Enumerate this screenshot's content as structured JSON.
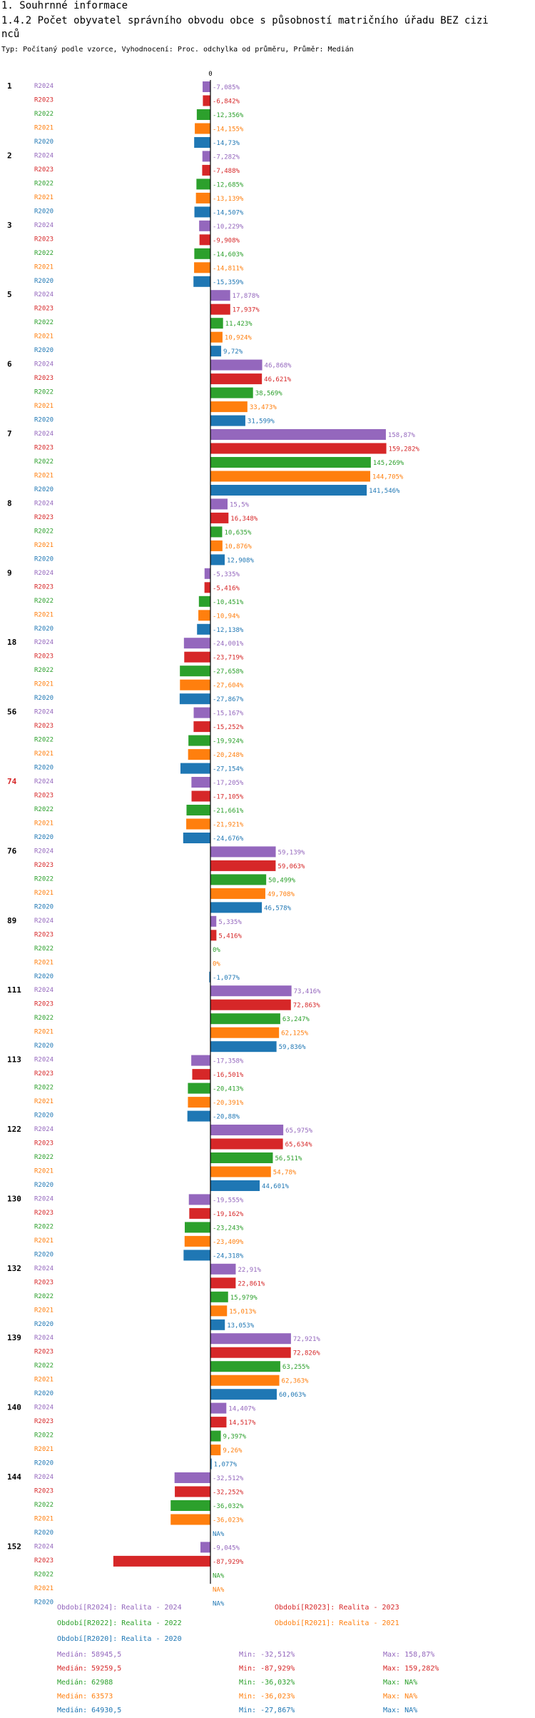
{
  "header": {
    "section": "1. Souhrnné informace",
    "title_line1": "1.4.2 Počet obyvatel správního obvodu obce s působností matričního úřadu BEZ cizi",
    "title_line2": "nců",
    "subtitle": "Typ: Počítaný podle vzorce, Vyhodnocení: Proc. odchylka od průměru, Průměr: Medián"
  },
  "colors": {
    "R2024": "#9467bd",
    "R2023": "#d62728",
    "R2022": "#2ca02c",
    "R2021": "#ff7f0e",
    "R2020": "#1f77b4",
    "highlight_label": "#d62728"
  },
  "chart_data": {
    "type": "bar",
    "orientation": "horizontal",
    "zero_label": "0",
    "series_labels": [
      "R2024",
      "R2023",
      "R2022",
      "R2021",
      "R2020"
    ],
    "highlight_group": "74",
    "groups": [
      {
        "id": "1",
        "values": [
          -7.085,
          -6.842,
          -12.356,
          -14.155,
          -14.73
        ],
        "labels": [
          "-7,085%",
          "-6,842%",
          "-12,356%",
          "-14,155%",
          "-14,73%"
        ]
      },
      {
        "id": "2",
        "values": [
          -7.282,
          -7.488,
          -12.685,
          -13.139,
          -14.507
        ],
        "labels": [
          "-7,282%",
          "-7,488%",
          "-12,685%",
          "-13,139%",
          "-14,507%"
        ]
      },
      {
        "id": "3",
        "values": [
          -10.229,
          -9.908,
          -14.603,
          -14.811,
          -15.359
        ],
        "labels": [
          "-10,229%",
          "-9,908%",
          "-14,603%",
          "-14,811%",
          "-15,359%"
        ]
      },
      {
        "id": "5",
        "values": [
          17.878,
          17.937,
          11.423,
          10.924,
          9.72
        ],
        "labels": [
          "17,878%",
          "17,937%",
          "11,423%",
          "10,924%",
          "9,72%"
        ]
      },
      {
        "id": "6",
        "values": [
          46.868,
          46.621,
          38.569,
          33.473,
          31.599
        ],
        "labels": [
          "46,868%",
          "46,621%",
          "38,569%",
          "33,473%",
          "31,599%"
        ]
      },
      {
        "id": "7",
        "values": [
          158.87,
          159.282,
          145.269,
          144.705,
          141.546
        ],
        "labels": [
          "158,87%",
          "159,282%",
          "145,269%",
          "144,705%",
          "141,546%"
        ]
      },
      {
        "id": "8",
        "values": [
          15.5,
          16.348,
          10.635,
          10.876,
          12.908
        ],
        "labels": [
          "15,5%",
          "16,348%",
          "10,635%",
          "10,876%",
          "12,908%"
        ]
      },
      {
        "id": "9",
        "values": [
          -5.335,
          -5.416,
          -10.451,
          -10.94,
          -12.138
        ],
        "labels": [
          "-5,335%",
          "-5,416%",
          "-10,451%",
          "-10,94%",
          "-12,138%"
        ]
      },
      {
        "id": "18",
        "values": [
          -24.001,
          -23.719,
          -27.658,
          -27.604,
          -27.867
        ],
        "labels": [
          "-24,001%",
          "-23,719%",
          "-27,658%",
          "-27,604%",
          "-27,867%"
        ]
      },
      {
        "id": "56",
        "values": [
          -15.167,
          -15.252,
          -19.924,
          -20.248,
          -27.154
        ],
        "labels": [
          "-15,167%",
          "-15,252%",
          "-19,924%",
          "-20,248%",
          "-27,154%"
        ]
      },
      {
        "id": "74",
        "values": [
          -17.205,
          -17.105,
          -21.661,
          -21.921,
          -24.676
        ],
        "labels": [
          "-17,205%",
          "-17,105%",
          "-21,661%",
          "-21,921%",
          "-24,676%"
        ]
      },
      {
        "id": "76",
        "values": [
          59.139,
          59.063,
          50.499,
          49.708,
          46.578
        ],
        "labels": [
          "59,139%",
          "59,063%",
          "50,499%",
          "49,708%",
          "46,578%"
        ]
      },
      {
        "id": "89",
        "values": [
          5.335,
          5.416,
          0,
          0,
          -1.077
        ],
        "labels": [
          "5,335%",
          "5,416%",
          "0%",
          "0%",
          "-1,077%"
        ]
      },
      {
        "id": "111",
        "values": [
          73.416,
          72.863,
          63.247,
          62.125,
          59.836
        ],
        "labels": [
          "73,416%",
          "72,863%",
          "63,247%",
          "62,125%",
          "59,836%"
        ]
      },
      {
        "id": "113",
        "values": [
          -17.358,
          -16.501,
          -20.413,
          -20.391,
          -20.88
        ],
        "labels": [
          "-17,358%",
          "-16,501%",
          "-20,413%",
          "-20,391%",
          "-20,88%"
        ]
      },
      {
        "id": "122",
        "values": [
          65.975,
          65.634,
          56.511,
          54.78,
          44.601
        ],
        "labels": [
          "65,975%",
          "65,634%",
          "56,511%",
          "54,78%",
          "44,601%"
        ]
      },
      {
        "id": "130",
        "values": [
          -19.555,
          -19.162,
          -23.243,
          -23.409,
          -24.318
        ],
        "labels": [
          "-19,555%",
          "-19,162%",
          "-23,243%",
          "-23,409%",
          "-24,318%"
        ]
      },
      {
        "id": "132",
        "values": [
          22.91,
          22.861,
          15.979,
          15.013,
          13.053
        ],
        "labels": [
          "22,91%",
          "22,861%",
          "15,979%",
          "15,013%",
          "13,053%"
        ]
      },
      {
        "id": "139",
        "values": [
          72.921,
          72.826,
          63.255,
          62.363,
          60.063
        ],
        "labels": [
          "72,921%",
          "72,826%",
          "63,255%",
          "62,363%",
          "60,063%"
        ]
      },
      {
        "id": "140",
        "values": [
          14.407,
          14.517,
          9.397,
          9.26,
          1.077
        ],
        "labels": [
          "14,407%",
          "14,517%",
          "9,397%",
          "9,26%",
          "1,077%"
        ]
      },
      {
        "id": "144",
        "values": [
          -32.512,
          -32.252,
          -36.032,
          -36.023,
          null
        ],
        "labels": [
          "-32,512%",
          "-32,252%",
          "-36,032%",
          "-36,023%",
          "NA%"
        ]
      },
      {
        "id": "152",
        "values": [
          -9.045,
          -87.929,
          null,
          null,
          null
        ],
        "labels": [
          "-9,045%",
          "-87,929%",
          "NA%",
          "NA%",
          "NA%"
        ]
      }
    ],
    "legend": [
      {
        "text": "Období[R2024]: Realita - 2024",
        "series": "R2024"
      },
      {
        "text": "Období[R2023]: Realita - 2023",
        "series": "R2023"
      },
      {
        "text": "Období[R2022]: Realita - 2022",
        "series": "R2022"
      },
      {
        "text": "Období[R2021]: Realita - 2021",
        "series": "R2021"
      },
      {
        "text": "Období[R2020]: Realita - 2020",
        "series": "R2020"
      }
    ],
    "stats": [
      {
        "series": "R2024",
        "median": "Medián: 58945,5",
        "min": "Min: -32,512%",
        "max": "Max: 158,87%"
      },
      {
        "series": "R2023",
        "median": "Medián: 59259,5",
        "min": "Min: -87,929%",
        "max": "Max: 159,282%"
      },
      {
        "series": "R2022",
        "median": "Medián: 62988",
        "min": "Min: -36,032%",
        "max": "Max: NA%"
      },
      {
        "series": "R2021",
        "median": "Medián: 63573",
        "min": "Min: -36,023%",
        "max": "Max: NA%"
      },
      {
        "series": "R2020",
        "median": "Medián: 64930,5",
        "min": "Min: -27,867%",
        "max": "Max: NA%"
      }
    ]
  }
}
